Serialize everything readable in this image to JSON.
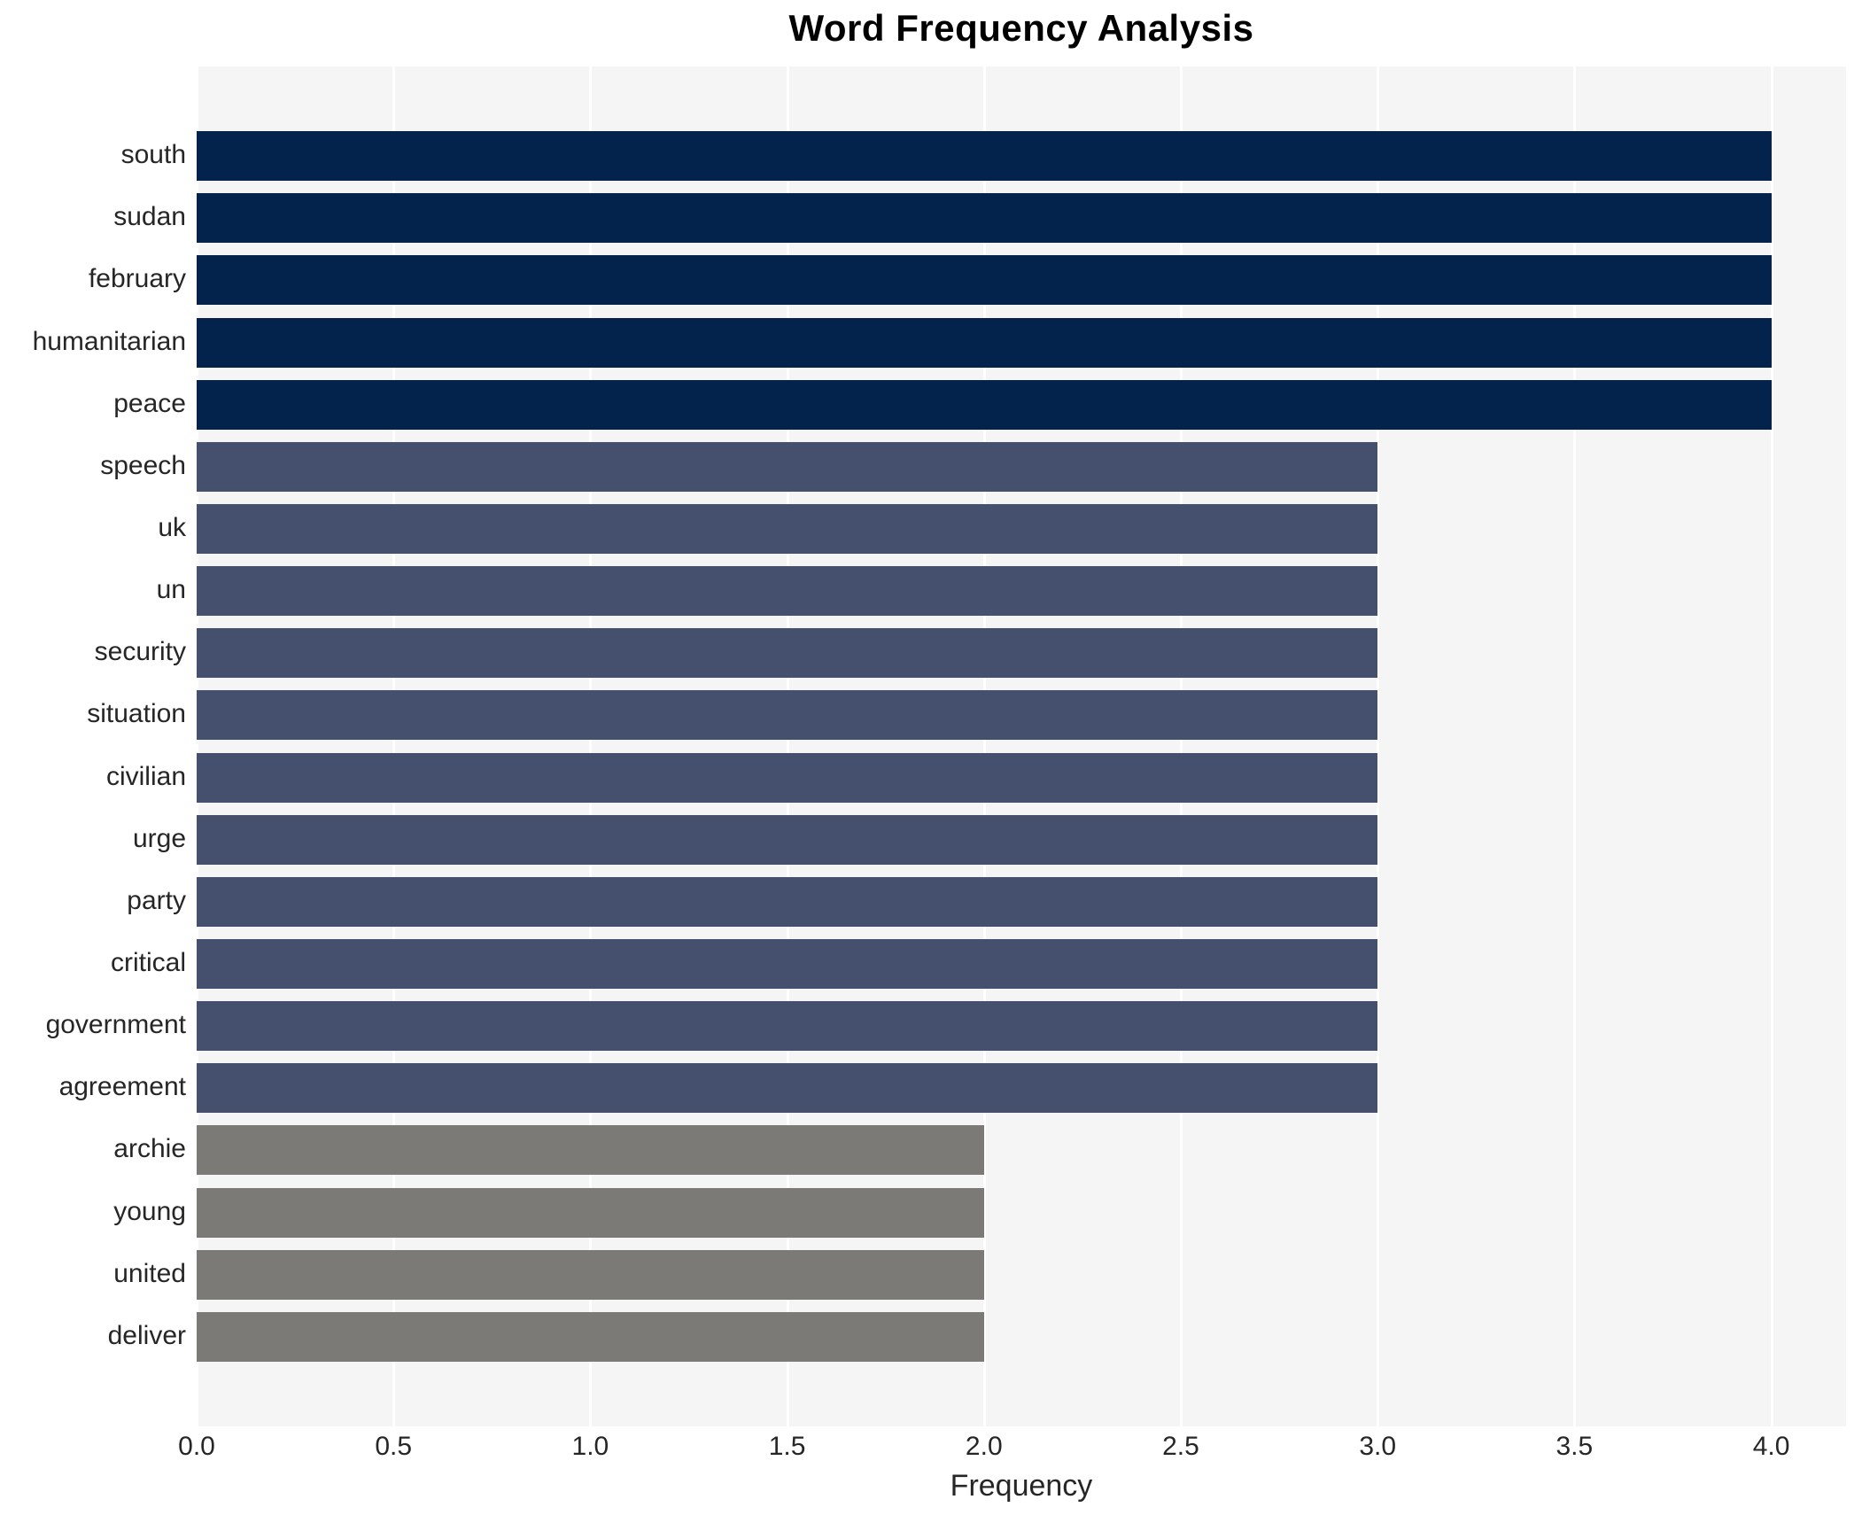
{
  "figure": {
    "title": "Word Frequency Analysis",
    "xlabel": "Frequency"
  },
  "chart_data": {
    "type": "bar",
    "orientation": "horizontal",
    "title": "Word Frequency Analysis",
    "xlabel": "Frequency",
    "ylabel": "",
    "categories": [
      "south",
      "sudan",
      "february",
      "humanitarian",
      "peace",
      "speech",
      "uk",
      "un",
      "security",
      "situation",
      "civilian",
      "urge",
      "party",
      "critical",
      "government",
      "agreement",
      "archie",
      "young",
      "united",
      "deliver"
    ],
    "values": [
      4,
      4,
      4,
      4,
      4,
      3,
      3,
      3,
      3,
      3,
      3,
      3,
      3,
      3,
      3,
      3,
      2,
      2,
      2,
      2
    ],
    "xlim": [
      0,
      4.19
    ],
    "xticks": [
      0.0,
      0.5,
      1.0,
      1.5,
      2.0,
      2.5,
      3.0,
      3.5,
      4.0
    ],
    "xtick_labels": [
      "0.0",
      "0.5",
      "1.0",
      "1.5",
      "2.0",
      "2.5",
      "3.0",
      "3.5",
      "4.0"
    ],
    "grid": true,
    "legend": false,
    "colors_by_value": {
      "4": "#03234d",
      "3": "#45506e",
      "2": "#7b7a77"
    },
    "plot_bg_color": "#f5f5f6",
    "grid_color": "#ffffff",
    "text_color": "#262626"
  }
}
